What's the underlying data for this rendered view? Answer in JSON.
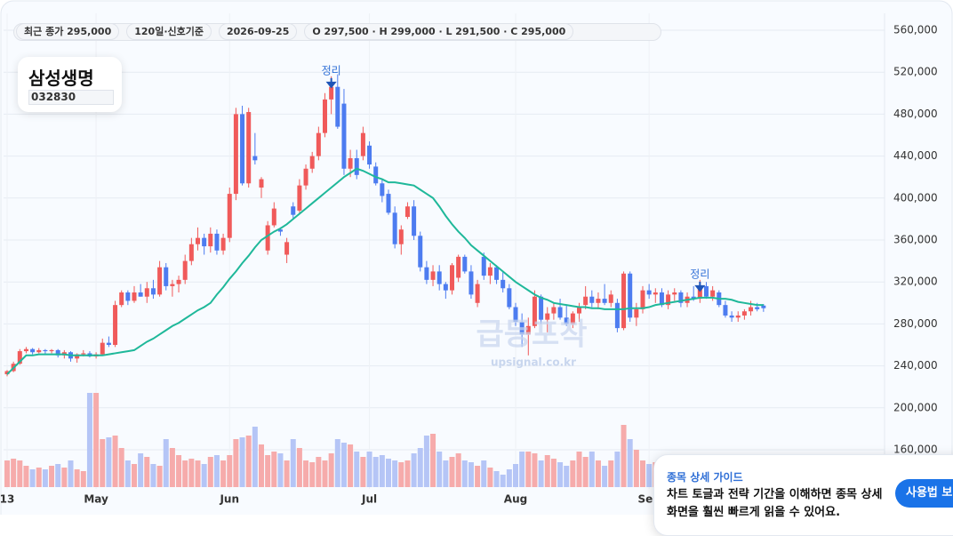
{
  "header": {
    "stats": [
      "최근 종가 295,000",
      "120일·신호기준",
      "2026-09-25",
      "O 297,500 · H 299,000 · L 291,500 · C 295,000"
    ]
  },
  "stock": {
    "name": "삼성생명",
    "code": "032830"
  },
  "watermark": {
    "title": "급등포착",
    "url": "upsignal.co.kr"
  },
  "guide": {
    "title": "종목 상세 가이드",
    "lines": [
      "차트 토글과 전략 기간을 이해하면 종목 상세",
      "화면을 훨씬 빠르게 읽을 수 있어요."
    ],
    "button": "사용법 보기"
  },
  "chart_data": {
    "type": "candlestick",
    "categories": [
      "13",
      null,
      null,
      null,
      null,
      null,
      null,
      null,
      null,
      null,
      null,
      null,
      null,
      null,
      "May",
      null,
      null,
      null,
      null,
      null,
      null,
      null,
      null,
      null,
      null,
      null,
      null,
      null,
      null,
      null,
      null,
      null,
      null,
      null,
      null,
      "Jun",
      null,
      null,
      null,
      null,
      null,
      null,
      null,
      null,
      null,
      null,
      null,
      null,
      null,
      null,
      null,
      null,
      null,
      null,
      null,
      null,
      null,
      "Jul",
      null,
      null,
      null,
      null,
      null,
      null,
      null,
      null,
      null,
      null,
      null,
      null,
      null,
      null,
      null,
      null,
      null,
      null,
      null,
      null,
      null,
      null,
      "Aug",
      null,
      null,
      null,
      null,
      null,
      null,
      null,
      null,
      null,
      null,
      null,
      null,
      null,
      null,
      null,
      null,
      null,
      null,
      null,
      null,
      "Sep",
      null,
      null,
      null,
      null,
      null,
      null,
      null,
      null,
      null,
      null,
      null,
      null,
      null,
      null,
      null,
      null,
      null,
      null
    ],
    "open": [
      232000,
      235000,
      242000,
      254000,
      256000,
      253000,
      255000,
      254000,
      255000,
      250000,
      253000,
      247000,
      251000,
      252000,
      249000,
      251000,
      262000,
      260000,
      298000,
      310000,
      302000,
      310000,
      306000,
      314000,
      308000,
      334000,
      316000,
      318000,
      322000,
      340000,
      356000,
      362000,
      354000,
      366000,
      350000,
      362000,
      404000,
      480000,
      414000,
      440000,
      410000,
      350000,
      374000,
      370000,
      346000,
      392000,
      388000,
      412000,
      428000,
      440000,
      462000,
      494000,
      506000,
      490000,
      428000,
      438000,
      440000,
      450000,
      430000,
      414000,
      404000,
      386000,
      356000,
      382000,
      392000,
      364000,
      334000,
      322000,
      330000,
      318000,
      312000,
      324000,
      344000,
      330000,
      300000,
      344000,
      326000,
      334000,
      322000,
      314000,
      296000,
      282000,
      270000,
      278000,
      306000,
      284000,
      290000,
      296000,
      286000,
      280000,
      290000,
      298000,
      306000,
      300000,
      304000,
      300000,
      300000,
      276000,
      328000,
      286000,
      294000,
      312000,
      308000,
      310000,
      298000,
      308000,
      310000,
      300000,
      306000,
      304000,
      316000,
      306000,
      310000,
      298000,
      288000,
      286000,
      288000,
      292000,
      296000,
      297500
    ],
    "high": [
      236000,
      244000,
      256000,
      258000,
      257000,
      257000,
      256000,
      256000,
      256000,
      255000,
      254000,
      252000,
      255000,
      254000,
      253000,
      266000,
      268000,
      302000,
      312000,
      312000,
      316000,
      318000,
      320000,
      322000,
      340000,
      338000,
      322000,
      326000,
      346000,
      362000,
      372000,
      366000,
      372000,
      370000,
      366000,
      410000,
      486000,
      488000,
      486000,
      462000,
      420000,
      378000,
      396000,
      372000,
      362000,
      396000,
      418000,
      432000,
      444000,
      468000,
      500000,
      516000,
      518000,
      504000,
      446000,
      446000,
      468000,
      454000,
      434000,
      418000,
      408000,
      392000,
      374000,
      396000,
      398000,
      368000,
      340000,
      336000,
      336000,
      320000,
      338000,
      346000,
      346000,
      336000,
      322000,
      348000,
      338000,
      336000,
      330000,
      318000,
      300000,
      290000,
      286000,
      312000,
      308000,
      296000,
      300000,
      304000,
      298000,
      292000,
      300000,
      316000,
      312000,
      310000,
      318000,
      312000,
      304000,
      330000,
      330000,
      300000,
      316000,
      318000,
      314000,
      314000,
      312000,
      314000,
      312000,
      310000,
      316000,
      322000,
      320000,
      316000,
      312000,
      302000,
      292000,
      292000,
      294000,
      302000,
      300000,
      299000
    ],
    "low": [
      230000,
      234000,
      241000,
      252000,
      251000,
      252000,
      251000,
      252000,
      248000,
      247000,
      244000,
      243000,
      249000,
      248000,
      247000,
      250000,
      258000,
      258000,
      296000,
      298000,
      300000,
      306000,
      300000,
      304000,
      306000,
      312000,
      306000,
      310000,
      318000,
      336000,
      350000,
      346000,
      348000,
      346000,
      346000,
      358000,
      398000,
      412000,
      410000,
      432000,
      400000,
      346000,
      372000,
      364000,
      338000,
      380000,
      386000,
      408000,
      424000,
      436000,
      458000,
      480000,
      466000,
      422000,
      420000,
      418000,
      436000,
      428000,
      412000,
      396000,
      384000,
      352000,
      346000,
      380000,
      360000,
      330000,
      318000,
      316000,
      312000,
      304000,
      308000,
      320000,
      328000,
      304000,
      296000,
      322000,
      318000,
      318000,
      310000,
      294000,
      278000,
      258000,
      250000,
      276000,
      280000,
      272000,
      284000,
      284000,
      278000,
      276000,
      282000,
      294000,
      296000,
      294000,
      298000,
      296000,
      272000,
      274000,
      282000,
      278000,
      290000,
      304000,
      300000,
      296000,
      294000,
      302000,
      296000,
      296000,
      302000,
      300000,
      304000,
      302000,
      296000,
      286000,
      282000,
      282000,
      284000,
      288000,
      292000,
      291500
    ],
    "close": [
      235000,
      242000,
      254000,
      256000,
      253000,
      255000,
      254000,
      255000,
      250000,
      253000,
      247000,
      251000,
      252000,
      249000,
      251000,
      262000,
      260000,
      298000,
      310000,
      302000,
      310000,
      306000,
      314000,
      308000,
      334000,
      316000,
      318000,
      322000,
      340000,
      356000,
      362000,
      354000,
      366000,
      350000,
      362000,
      404000,
      480000,
      414000,
      482000,
      436000,
      418000,
      374000,
      390000,
      368000,
      358000,
      384000,
      412000,
      428000,
      440000,
      462000,
      494000,
      506000,
      468000,
      428000,
      438000,
      422000,
      462000,
      432000,
      414000,
      402000,
      386000,
      356000,
      370000,
      392000,
      364000,
      334000,
      322000,
      330000,
      318000,
      312000,
      336000,
      344000,
      330000,
      308000,
      318000,
      326000,
      334000,
      322000,
      314000,
      296000,
      282000,
      270000,
      278000,
      306000,
      284000,
      290000,
      296000,
      286000,
      280000,
      290000,
      296000,
      306000,
      300000,
      304000,
      300000,
      308000,
      276000,
      328000,
      286000,
      294000,
      312000,
      308000,
      310000,
      298000,
      308000,
      310000,
      300000,
      306000,
      304000,
      316000,
      306000,
      312000,
      298000,
      288000,
      286000,
      288000,
      292000,
      296000,
      294000,
      295000
    ],
    "volume": [
      30,
      32,
      30,
      24,
      20,
      22,
      20,
      24,
      26,
      22,
      30,
      20,
      18,
      106,
      106,
      54,
      56,
      58,
      44,
      30,
      26,
      38,
      34,
      26,
      24,
      54,
      44,
      36,
      30,
      32,
      30,
      26,
      34,
      36,
      30,
      36,
      54,
      56,
      58,
      68,
      48,
      36,
      40,
      38,
      30,
      54,
      44,
      30,
      28,
      34,
      30,
      38,
      54,
      50,
      48,
      40,
      34,
      40,
      34,
      36,
      32,
      30,
      28,
      30,
      38,
      44,
      58,
      60,
      40,
      30,
      34,
      38,
      30,
      28,
      24,
      30,
      22,
      18,
      14,
      20,
      26,
      40,
      40,
      38,
      30,
      36,
      32,
      28,
      24,
      30,
      40,
      34,
      40,
      30,
      24,
      30,
      40,
      70,
      54,
      42,
      30,
      26,
      28,
      26,
      30,
      28,
      32,
      26,
      30,
      22,
      26,
      24,
      20,
      18,
      22,
      20,
      24,
      22,
      20,
      18
    ],
    "volume_ylim": [
      0,
      110
    ],
    "ma": {
      "color": "#1fb89a",
      "values": [
        232000,
        238000,
        244000,
        250000,
        250000,
        251000,
        251000,
        251000,
        251000,
        251000,
        250000,
        250000,
        250000,
        250000,
        250000,
        250000,
        251000,
        252000,
        253000,
        254000,
        255000,
        259000,
        263000,
        266000,
        270000,
        274000,
        278000,
        281000,
        285000,
        289000,
        293000,
        296000,
        300000,
        308000,
        315000,
        323000,
        330000,
        338000,
        345000,
        353000,
        360000,
        364000,
        368000,
        371000,
        375000,
        380000,
        385000,
        390000,
        395000,
        400000,
        405000,
        410000,
        415000,
        420000,
        424000,
        428000,
        426000,
        423000,
        420000,
        418000,
        415000,
        415000,
        414000,
        413000,
        412000,
        408000,
        404000,
        400000,
        392000,
        383000,
        375000,
        368000,
        362000,
        355000,
        350000,
        345000,
        340000,
        335000,
        330000,
        325000,
        320000,
        316000,
        312000,
        308000,
        305000,
        303000,
        300000,
        299000,
        298000,
        297000,
        296000,
        296000,
        295000,
        295000,
        294000,
        294000,
        294000,
        294000,
        295000,
        295000,
        295000,
        296000,
        298000,
        299000,
        300000,
        301000,
        302000,
        303000,
        304000,
        305000,
        305000,
        305000,
        304000,
        304000,
        303000,
        301000,
        300000,
        299000,
        298000,
        298000
      ]
    },
    "annotations": [
      {
        "text": "정리",
        "index": 51
      },
      {
        "text": "정리",
        "index": 109
      }
    ],
    "up_color": "#f05a5a",
    "down_color": "#4d7cf0",
    "volume_up_color": "#f6abab",
    "volume_down_color": "#b5c5f6",
    "annotation_color": "#2f6fd6",
    "ylim": [
      160000,
      560000
    ],
    "yticks": [
      {
        "value": 160000,
        "label": "160,000"
      },
      {
        "value": 200000,
        "label": "200,000"
      },
      {
        "value": 240000,
        "label": "240,000"
      },
      {
        "value": 280000,
        "label": "280,000"
      },
      {
        "value": 320000,
        "label": "320,000"
      },
      {
        "value": 360000,
        "label": "360,000"
      },
      {
        "value": 400000,
        "label": "400,000"
      },
      {
        "value": 440000,
        "label": "440,000"
      },
      {
        "value": 480000,
        "label": "480,000"
      },
      {
        "value": 520000,
        "label": "520,000"
      },
      {
        "value": 560000,
        "label": "560,000"
      }
    ],
    "grid": true
  }
}
